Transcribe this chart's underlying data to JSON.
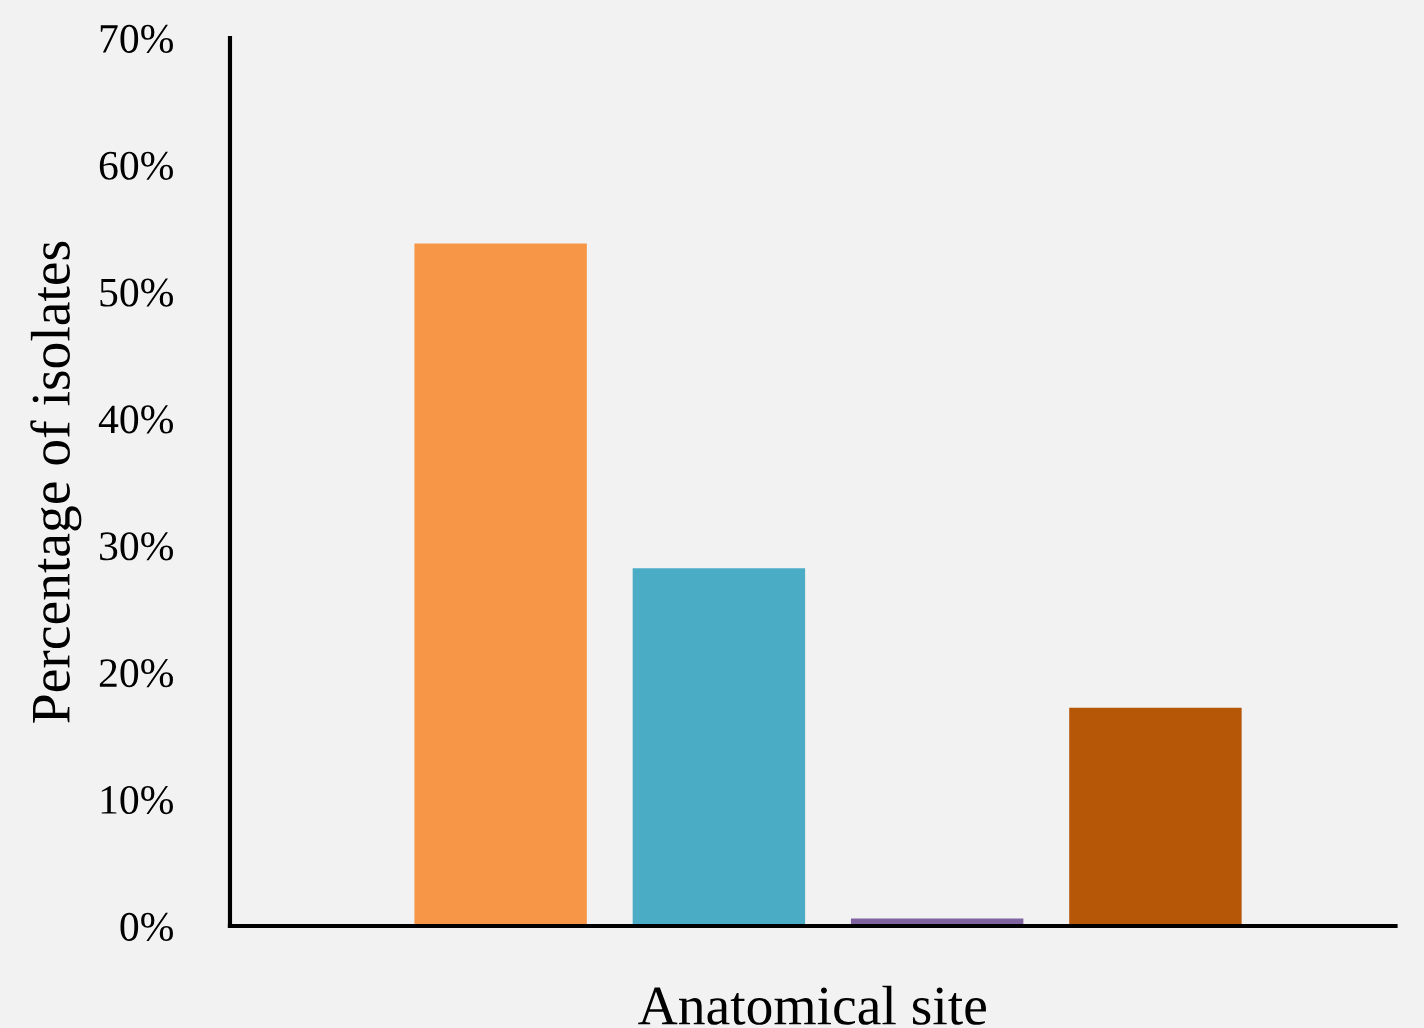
{
  "chart_data": {
    "type": "bar",
    "xlabel": "Anatomical site",
    "ylabel": "Percentage of isolates",
    "categories": [
      null,
      null,
      null,
      null
    ],
    "values": [
      53.8,
      28.2,
      0.6,
      17.2
    ],
    "colors": [
      "#f79646",
      "#4bacc6",
      "#8064a2",
      "#b65708"
    ],
    "ylim": [
      0,
      70
    ],
    "yticks": [
      {
        "value": 0,
        "label": "0%"
      },
      {
        "value": 10,
        "label": "10%"
      },
      {
        "value": 20,
        "label": "20%"
      },
      {
        "value": 30,
        "label": "30%"
      },
      {
        "value": 40,
        "label": "40%"
      },
      {
        "value": 50,
        "label": "50%"
      },
      {
        "value": 60,
        "label": "60%"
      },
      {
        "value": 70,
        "label": "70%"
      }
    ],
    "grid": false,
    "legend": false
  }
}
